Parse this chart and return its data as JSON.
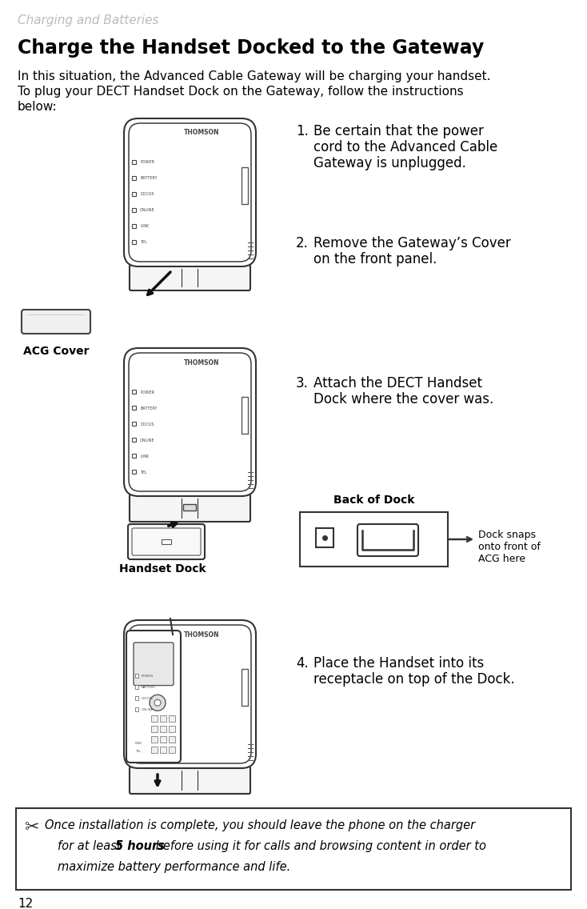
{
  "page_number": "12",
  "chapter_title": "Charging and Batteries",
  "section_title": "Charge the Handset Docked to the Gateway",
  "intro_line1": "In this situation, the Advanced Cable Gateway will be charging your handset.",
  "intro_line2": "To plug your DECT Handset Dock on the Gateway, follow the instructions",
  "intro_line2b": "below:",
  "steps": [
    {
      "number": "1.",
      "lines": [
        "Be certain that the power",
        "cord to the Advanced Cable",
        "Gateway is unplugged."
      ]
    },
    {
      "number": "2.",
      "lines": [
        "Remove the Gateway’s Cover",
        "on the front panel."
      ]
    },
    {
      "number": "3.",
      "lines": [
        "Attach the DECT Handset",
        "Dock where the cover was."
      ]
    },
    {
      "number": "4.",
      "lines": [
        "Place the Handset into its",
        "receptacle on top of the Dock."
      ]
    }
  ],
  "label_acg_cover": "ACG Cover",
  "label_handset_dock": "Handset Dock",
  "label_back_of_dock": "Back of Dock",
  "label_dock_snaps": "Dock snaps\nonto front of\nACG here",
  "note_text_line1": "Once installation is complete, you should leave the phone on the charger",
  "note_text_line2_pre": "for at least ",
  "note_text_bold": "5 hours",
  "note_text_line2_post": " before using it for calls and browsing content in order to",
  "note_text_line3": "maximize battery performance and life.",
  "bg_color": "#ffffff",
  "text_color": "#000000",
  "gray_dark": "#333333",
  "gray_mid": "#666666",
  "gray_light": "#aaaaaa",
  "gray_fill": "#f0f0f0",
  "gray_fill2": "#e0e0e0"
}
